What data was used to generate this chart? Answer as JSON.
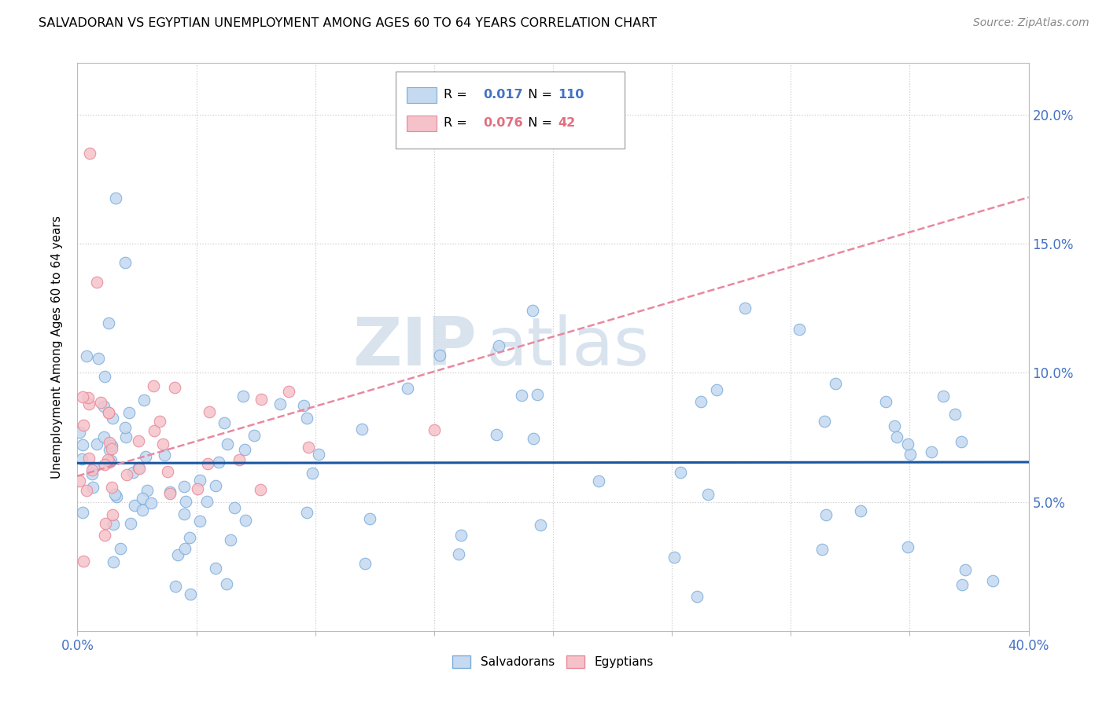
{
  "title": "SALVADORAN VS EGYPTIAN UNEMPLOYMENT AMONG AGES 60 TO 64 YEARS CORRELATION CHART",
  "source": "Source: ZipAtlas.com",
  "ylabel": "Unemployment Among Ages 60 to 64 years",
  "xlim": [
    0.0,
    0.4
  ],
  "ylim": [
    0.0,
    0.22
  ],
  "yticks": [
    0.05,
    0.1,
    0.15,
    0.2
  ],
  "ytick_labels": [
    "5.0%",
    "10.0%",
    "15.0%",
    "20.0%"
  ],
  "watermark_zip": "ZIP",
  "watermark_atlas": "atlas",
  "legend_r1_val": "0.017",
  "legend_n1_val": "110",
  "legend_r2_val": "0.076",
  "legend_n2_val": "42",
  "salvadoran_color": "#c5d9f0",
  "salvadoran_edge": "#7aaddb",
  "egyptian_color": "#f5c2ca",
  "egyptian_edge": "#e88898",
  "trend_salvadoran_color": "#1a56a0",
  "trend_egyptian_color": "#e888a0",
  "blue_text_color": "#4472c4",
  "pink_text_color": "#e07080"
}
